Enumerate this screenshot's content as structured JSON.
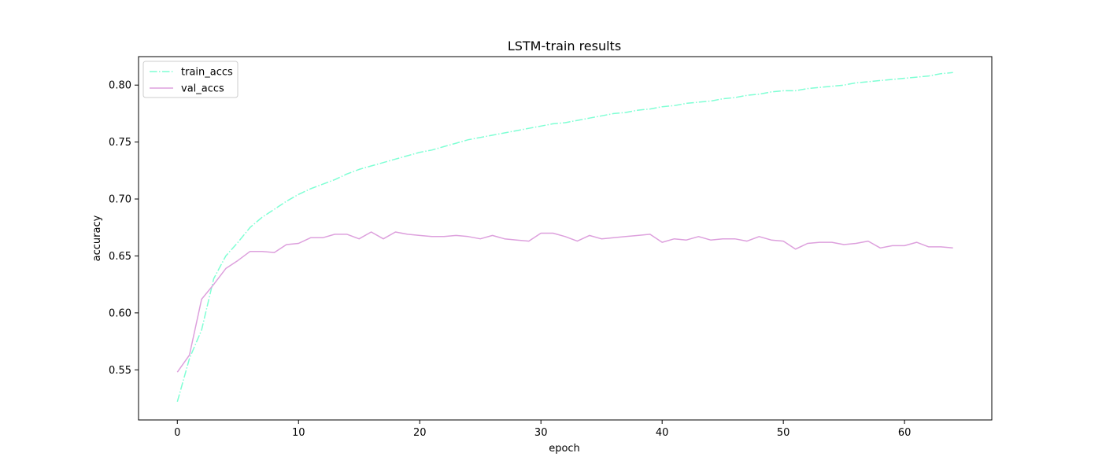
{
  "chart_data": {
    "type": "line",
    "title": "LSTM-train results",
    "xlabel": "epoch",
    "ylabel": "accuracy",
    "xlim": [
      -3.2,
      67.2
    ],
    "ylim": [
      0.506,
      0.825
    ],
    "xticks": [
      0,
      10,
      20,
      30,
      40,
      50,
      60
    ],
    "yticks": [
      0.55,
      0.6,
      0.65,
      0.7,
      0.75,
      0.8
    ],
    "ytick_labels": [
      "0.55",
      "0.60",
      "0.65",
      "0.70",
      "0.75",
      "0.80"
    ],
    "grid": false,
    "legend_position": "upper-left",
    "x": [
      0,
      1,
      2,
      3,
      4,
      5,
      6,
      7,
      8,
      9,
      10,
      11,
      12,
      13,
      14,
      15,
      16,
      17,
      18,
      19,
      20,
      21,
      22,
      23,
      24,
      25,
      26,
      27,
      28,
      29,
      30,
      31,
      32,
      33,
      34,
      35,
      36,
      37,
      38,
      39,
      40,
      41,
      42,
      43,
      44,
      45,
      46,
      47,
      48,
      49,
      50,
      51,
      52,
      53,
      54,
      55,
      56,
      57,
      58,
      59,
      60,
      61,
      62,
      63,
      64
    ],
    "series": [
      {
        "name": "train_accs",
        "color": "#7fffd4",
        "style": "dashdot",
        "values": [
          0.522,
          0.56,
          0.585,
          0.63,
          0.65,
          0.662,
          0.675,
          0.684,
          0.691,
          0.698,
          0.704,
          0.709,
          0.713,
          0.717,
          0.722,
          0.726,
          0.729,
          0.732,
          0.735,
          0.738,
          0.741,
          0.743,
          0.746,
          0.749,
          0.752,
          0.754,
          0.756,
          0.758,
          0.76,
          0.762,
          0.764,
          0.766,
          0.767,
          0.769,
          0.771,
          0.773,
          0.775,
          0.776,
          0.778,
          0.779,
          0.781,
          0.782,
          0.784,
          0.785,
          0.786,
          0.788,
          0.789,
          0.791,
          0.792,
          0.794,
          0.795,
          0.795,
          0.797,
          0.798,
          0.799,
          0.8,
          0.802,
          0.803,
          0.804,
          0.805,
          0.806,
          0.807,
          0.808,
          0.81,
          0.811
        ]
      },
      {
        "name": "val_accs",
        "color": "#dda0dd",
        "style": "solid",
        "values": [
          0.548,
          0.563,
          0.612,
          0.625,
          0.639,
          0.646,
          0.654,
          0.654,
          0.653,
          0.66,
          0.661,
          0.666,
          0.666,
          0.669,
          0.669,
          0.665,
          0.671,
          0.665,
          0.671,
          0.669,
          0.668,
          0.667,
          0.667,
          0.668,
          0.667,
          0.665,
          0.668,
          0.665,
          0.664,
          0.663,
          0.67,
          0.67,
          0.667,
          0.663,
          0.668,
          0.665,
          0.666,
          0.667,
          0.668,
          0.669,
          0.662,
          0.665,
          0.664,
          0.667,
          0.664,
          0.665,
          0.665,
          0.663,
          0.667,
          0.664,
          0.663,
          0.656,
          0.661,
          0.662,
          0.662,
          0.66,
          0.661,
          0.663,
          0.657,
          0.659,
          0.659,
          0.662,
          0.658,
          0.658,
          0.657
        ]
      }
    ]
  }
}
